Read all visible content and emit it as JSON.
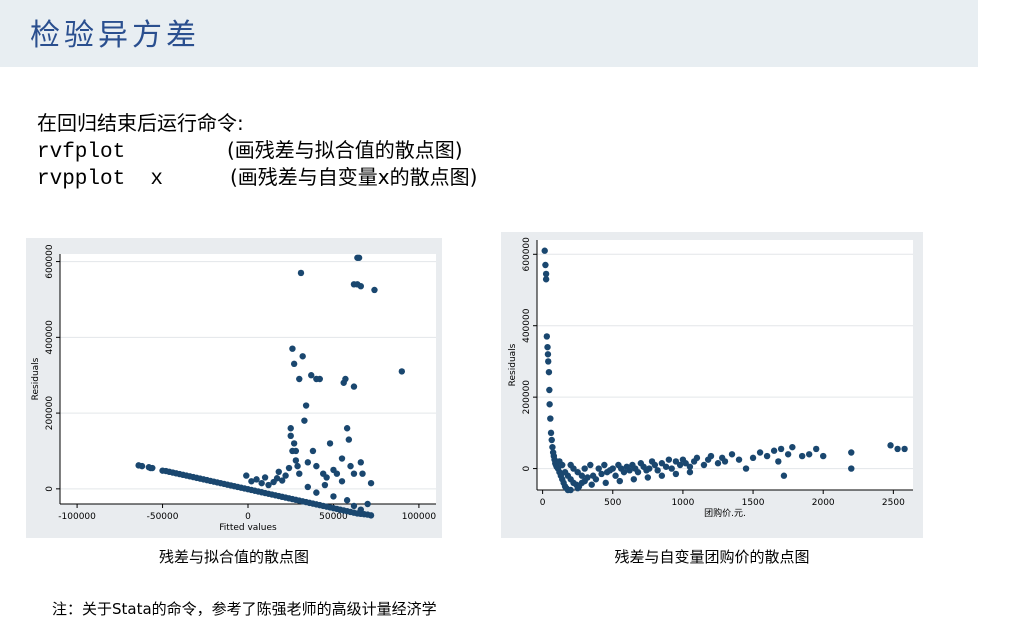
{
  "header": {
    "title": "检验异方差"
  },
  "body": {
    "intro": "在回归结束后运行命令:",
    "commands": [
      {
        "cmd": "rvfplot",
        "desc": "(画残差与拟合值的散点图)"
      },
      {
        "cmd": "rvpplot  x",
        "desc": "(画残差与自变量x的散点图)"
      }
    ]
  },
  "captions": {
    "left": "残差与拟合值的散点图",
    "right": "残差与自变量团购价的散点图"
  },
  "footer": {
    "note": "注：关于Stata的命令，参考了陈强老师的高级计量经济学"
  },
  "chart_data": [
    {
      "type": "scatter",
      "title": "",
      "xlabel": "Fitted values",
      "ylabel": "Residuals",
      "xlim": [
        -110000,
        110000
      ],
      "ylim": [
        -40000,
        620000
      ],
      "xticks": [
        -100000,
        -50000,
        0,
        50000,
        100000
      ],
      "xtick_labels": [
        "-100000",
        "-50000",
        "0",
        "50000",
        "100000"
      ],
      "yticks": [
        0,
        200000,
        400000,
        600000
      ],
      "ytick_labels": [
        "0",
        "200000",
        "400000",
        "600000"
      ],
      "grid": true,
      "marker_color": "#1a476f",
      "points": [
        [
          -64000,
          62000
        ],
        [
          -62000,
          60000
        ],
        [
          -58000,
          57000
        ],
        [
          -57000,
          55000
        ],
        [
          -56000,
          55000
        ],
        [
          -50000,
          48000
        ],
        [
          -48000,
          47000
        ],
        [
          -46000,
          45000
        ],
        [
          -44000,
          43000
        ],
        [
          -42000,
          41000
        ],
        [
          -40000,
          39000
        ],
        [
          -38000,
          37000
        ],
        [
          -36000,
          35000
        ],
        [
          -34000,
          33000
        ],
        [
          -32000,
          31000
        ],
        [
          -30000,
          29000
        ],
        [
          -28000,
          27000
        ],
        [
          -26000,
          25000
        ],
        [
          -24000,
          23000
        ],
        [
          -22000,
          21000
        ],
        [
          -20000,
          19000
        ],
        [
          -18000,
          17000
        ],
        [
          -16000,
          15000
        ],
        [
          -14000,
          13000
        ],
        [
          -12000,
          11000
        ],
        [
          -10000,
          9000
        ],
        [
          -8000,
          7000
        ],
        [
          -6000,
          5000
        ],
        [
          -4000,
          3000
        ],
        [
          -2000,
          1000
        ],
        [
          0,
          -1000
        ],
        [
          2000,
          -3000
        ],
        [
          4000,
          -5000
        ],
        [
          6000,
          -7000
        ],
        [
          8000,
          -9000
        ],
        [
          10000,
          -11000
        ],
        [
          12000,
          -13000
        ],
        [
          14000,
          -15000
        ],
        [
          16000,
          -17000
        ],
        [
          18000,
          -19000
        ],
        [
          20000,
          -21000
        ],
        [
          22000,
          -23000
        ],
        [
          24000,
          -25000
        ],
        [
          26000,
          -27000
        ],
        [
          28000,
          -29000
        ],
        [
          30000,
          -31000
        ],
        [
          32000,
          -33000
        ],
        [
          34000,
          -35000
        ],
        [
          36000,
          -37000
        ],
        [
          38000,
          -39000
        ],
        [
          40000,
          -41000
        ],
        [
          42000,
          -43000
        ],
        [
          44000,
          -45000
        ],
        [
          46000,
          -47000
        ],
        [
          48000,
          -49000
        ],
        [
          50000,
          -51000
        ],
        [
          52000,
          -53000
        ],
        [
          54000,
          -55000
        ],
        [
          56000,
          -57000
        ],
        [
          58000,
          -59000
        ],
        [
          60000,
          -61000
        ],
        [
          62000,
          -63000
        ],
        [
          64000,
          -65000
        ],
        [
          66000,
          -66000
        ],
        [
          68000,
          -67000
        ],
        [
          70000,
          -68000
        ],
        [
          72000,
          -70000
        ],
        [
          -1000,
          35000
        ],
        [
          2000,
          20000
        ],
        [
          5000,
          25000
        ],
        [
          8000,
          15000
        ],
        [
          10000,
          30000
        ],
        [
          12000,
          10000
        ],
        [
          15000,
          18000
        ],
        [
          17000,
          28000
        ],
        [
          18000,
          45000
        ],
        [
          20000,
          22000
        ],
        [
          22000,
          35000
        ],
        [
          24000,
          55000
        ],
        [
          25000,
          160000
        ],
        [
          25000,
          140000
        ],
        [
          26000,
          100000
        ],
        [
          27000,
          120000
        ],
        [
          26000,
          370000
        ],
        [
          27000,
          330000
        ],
        [
          28000,
          100000
        ],
        [
          28000,
          75000
        ],
        [
          29000,
          60000
        ],
        [
          30000,
          40000
        ],
        [
          30000,
          290000
        ],
        [
          31000,
          570000
        ],
        [
          32000,
          350000
        ],
        [
          33000,
          180000
        ],
        [
          34000,
          220000
        ],
        [
          35000,
          70000
        ],
        [
          37000,
          300000
        ],
        [
          38000,
          100000
        ],
        [
          40000,
          60000
        ],
        [
          40000,
          290000
        ],
        [
          42000,
          290000
        ],
        [
          44000,
          40000
        ],
        [
          46000,
          30000
        ],
        [
          48000,
          120000
        ],
        [
          50000,
          50000
        ],
        [
          52000,
          40000
        ],
        [
          55000,
          80000
        ],
        [
          56000,
          280000
        ],
        [
          57000,
          290000
        ],
        [
          58000,
          160000
        ],
        [
          59000,
          130000
        ],
        [
          60000,
          60000
        ],
        [
          62000,
          270000
        ],
        [
          62000,
          40000
        ],
        [
          64000,
          610000
        ],
        [
          65000,
          610000
        ],
        [
          66000,
          70000
        ],
        [
          62000,
          540000
        ],
        [
          64000,
          540000
        ],
        [
          66000,
          535000
        ],
        [
          67000,
          40000
        ],
        [
          70000,
          -40000
        ],
        [
          72000,
          15000
        ],
        [
          74000,
          525000
        ],
        [
          90000,
          310000
        ],
        [
          55000,
          20000
        ],
        [
          45000,
          10000
        ],
        [
          35000,
          5000
        ],
        [
          40000,
          -10000
        ],
        [
          50000,
          -20000
        ],
        [
          58000,
          -30000
        ],
        [
          62000,
          -45000
        ],
        [
          66000,
          -55000
        ]
      ]
    },
    {
      "type": "scatter",
      "title": "",
      "xlabel": "团购价.元.",
      "ylabel": "Residuals",
      "xlim": [
        -40,
        2640
      ],
      "ylim": [
        -60000,
        640000
      ],
      "xticks": [
        0,
        500,
        1000,
        1500,
        2000,
        2500
      ],
      "xtick_labels": [
        "0",
        "500",
        "1000",
        "1500",
        "2000",
        "2500"
      ],
      "yticks": [
        0,
        200000,
        400000,
        600000
      ],
      "ytick_labels": [
        "0",
        "200000",
        "400000",
        "600000"
      ],
      "grid": true,
      "marker_color": "#1a476f",
      "points": [
        [
          15,
          610000
        ],
        [
          20,
          570000
        ],
        [
          25,
          545000
        ],
        [
          25,
          530000
        ],
        [
          30,
          370000
        ],
        [
          35,
          340000
        ],
        [
          38,
          320000
        ],
        [
          40,
          300000
        ],
        [
          45,
          270000
        ],
        [
          48,
          220000
        ],
        [
          50,
          180000
        ],
        [
          55,
          140000
        ],
        [
          60,
          100000
        ],
        [
          65,
          80000
        ],
        [
          70,
          60000
        ],
        [
          75,
          45000
        ],
        [
          80,
          35000
        ],
        [
          85,
          25000
        ],
        [
          90,
          15000
        ],
        [
          95,
          10000
        ],
        [
          100,
          5000
        ],
        [
          110,
          0
        ],
        [
          120,
          -10000
        ],
        [
          130,
          -20000
        ],
        [
          140,
          -30000
        ],
        [
          150,
          -40000
        ],
        [
          160,
          -50000
        ],
        [
          170,
          -55000
        ],
        [
          180,
          -60000
        ],
        [
          120,
          20000
        ],
        [
          140,
          10000
        ],
        [
          160,
          -10000
        ],
        [
          180,
          -20000
        ],
        [
          200,
          -30000
        ],
        [
          220,
          -40000
        ],
        [
          240,
          -45000
        ],
        [
          260,
          -50000
        ],
        [
          280,
          -40000
        ],
        [
          300,
          -35000
        ],
        [
          200,
          10000
        ],
        [
          220,
          0
        ],
        [
          250,
          -10000
        ],
        [
          280,
          -20000
        ],
        [
          300,
          0
        ],
        [
          320,
          -25000
        ],
        [
          340,
          10000
        ],
        [
          360,
          -20000
        ],
        [
          380,
          -30000
        ],
        [
          400,
          0
        ],
        [
          420,
          -15000
        ],
        [
          440,
          10000
        ],
        [
          460,
          -10000
        ],
        [
          480,
          -5000
        ],
        [
          500,
          0
        ],
        [
          520,
          -20000
        ],
        [
          540,
          10000
        ],
        [
          560,
          0
        ],
        [
          580,
          -10000
        ],
        [
          600,
          5000
        ],
        [
          620,
          -5000
        ],
        [
          640,
          10000
        ],
        [
          660,
          0
        ],
        [
          680,
          -10000
        ],
        [
          700,
          15000
        ],
        [
          720,
          5000
        ],
        [
          740,
          -5000
        ],
        [
          760,
          0
        ],
        [
          780,
          20000
        ],
        [
          800,
          10000
        ],
        [
          820,
          -5000
        ],
        [
          850,
          15000
        ],
        [
          880,
          5000
        ],
        [
          900,
          25000
        ],
        [
          920,
          0
        ],
        [
          950,
          20000
        ],
        [
          980,
          10000
        ],
        [
          1000,
          25000
        ],
        [
          1020,
          15000
        ],
        [
          1050,
          5000
        ],
        [
          1080,
          20000
        ],
        [
          1100,
          30000
        ],
        [
          1150,
          10000
        ],
        [
          1180,
          25000
        ],
        [
          1200,
          35000
        ],
        [
          1250,
          15000
        ],
        [
          1280,
          30000
        ],
        [
          1300,
          20000
        ],
        [
          1350,
          40000
        ],
        [
          1400,
          25000
        ],
        [
          1450,
          0
        ],
        [
          1500,
          30000
        ],
        [
          1550,
          45000
        ],
        [
          1600,
          35000
        ],
        [
          1650,
          50000
        ],
        [
          1680,
          20000
        ],
        [
          1700,
          55000
        ],
        [
          1720,
          -20000
        ],
        [
          1750,
          40000
        ],
        [
          1780,
          60000
        ],
        [
          1850,
          35000
        ],
        [
          1900,
          40000
        ],
        [
          1950,
          55000
        ],
        [
          2000,
          35000
        ],
        [
          2200,
          45000
        ],
        [
          2200,
          0
        ],
        [
          2480,
          65000
        ],
        [
          2530,
          55000
        ],
        [
          2580,
          55000
        ],
        [
          200,
          -60000
        ],
        [
          250,
          -55000
        ],
        [
          350,
          -45000
        ],
        [
          450,
          -40000
        ],
        [
          550,
          -35000
        ],
        [
          650,
          -30000
        ],
        [
          750,
          -25000
        ],
        [
          850,
          -20000
        ],
        [
          950,
          -15000
        ],
        [
          1050,
          -10000
        ]
      ]
    }
  ]
}
